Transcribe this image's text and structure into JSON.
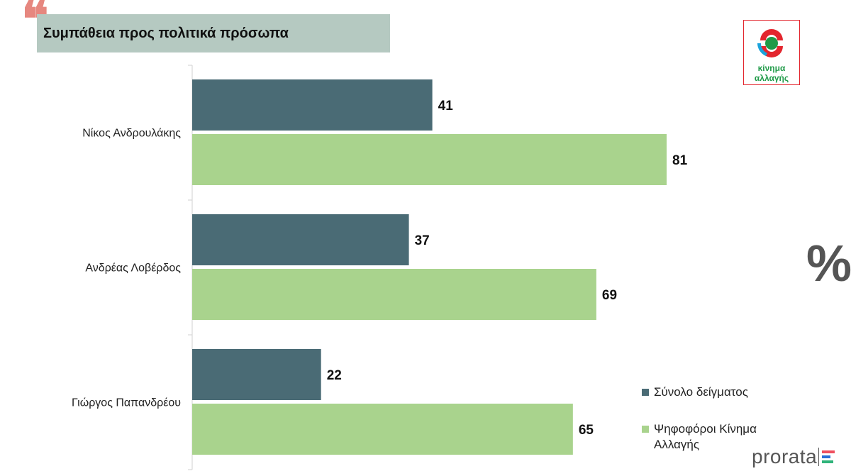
{
  "title": "Συμπάθεια προς πολιτικά πρόσωπα",
  "quote_glyph": "❝",
  "percent_glyph": "%",
  "logo": {
    "line1": "κίνημα",
    "line2": "αλλαγής"
  },
  "brand": "prorata",
  "colors": {
    "series_total": "#4a6b75",
    "series_kinal": "#a9d38d",
    "title_bg": "#b5c9c1",
    "quote": "#e6877f",
    "logo_red": "#e3262e",
    "logo_green": "#1f9a48",
    "logo_blue": "#1aa3dc",
    "axis": "#d0d0d0",
    "brand_bars": [
      "#ef4f5f",
      "#2b6fd6",
      "#2fb37a"
    ]
  },
  "chart_data": {
    "type": "bar",
    "orientation": "horizontal",
    "categories": [
      "Νίκος Ανδρουλάκης",
      "Ανδρέας Λοβέρδος",
      "Γιώργος Παπανδρέου"
    ],
    "series": [
      {
        "name": "Σύνολο δείγματος",
        "values": [
          41,
          37,
          22
        ]
      },
      {
        "name": "Ψηφοφόροι Κίνημα Αλλαγής",
        "values": [
          81,
          69,
          65
        ]
      }
    ],
    "unit": "%",
    "xlim": [
      0,
      100
    ],
    "grid": false,
    "data_labels": true,
    "legend_position": "bottom-right"
  }
}
